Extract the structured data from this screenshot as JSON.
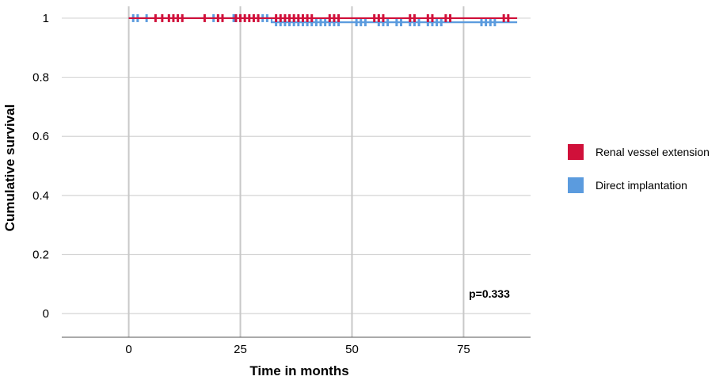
{
  "chart_data": {
    "type": "line",
    "xlabel": "Time in months",
    "ylabel": "Cumulative survival",
    "xlim": [
      -15,
      90
    ],
    "ylim": [
      -0.08,
      1.04
    ],
    "xticks": [
      0,
      25,
      50,
      75
    ],
    "yticks": [
      0,
      0.2,
      0.4,
      0.6,
      0.8,
      1
    ],
    "x_tick_labels": [
      "0",
      "25",
      "50",
      "75"
    ],
    "y_tick_labels": [
      "0",
      "0.2",
      "0.4",
      "0.6",
      "0.8",
      "1"
    ],
    "grid": true,
    "annotation": "p=0.333",
    "legend_position": "right",
    "series": [
      {
        "name": "Renal vessel extension",
        "color": "#d0103a",
        "line": [
          [
            0,
            1
          ],
          [
            87,
            1
          ]
        ],
        "censored_x": [
          6,
          7.5,
          9,
          10,
          11,
          12,
          17,
          20,
          21,
          24,
          25,
          26,
          27,
          28,
          29,
          33,
          34,
          35,
          36,
          37,
          38,
          39,
          40,
          41,
          45,
          46,
          47,
          55,
          56,
          57,
          63,
          64,
          67,
          68,
          71,
          72,
          84,
          85
        ],
        "censored_y": 1
      },
      {
        "name": "Direct implantation",
        "color": "#5b9bde",
        "line": [
          [
            0,
            1
          ],
          [
            32,
            1
          ],
          [
            32,
            0.986
          ],
          [
            87,
            0.986
          ]
        ],
        "censored_x": [
          1,
          2,
          4,
          19,
          23.5,
          24,
          25,
          30,
          31
        ],
        "censored_x_lower": [
          33,
          34,
          35,
          36,
          37,
          38,
          39,
          40,
          41,
          42,
          43,
          44,
          45,
          46,
          47,
          51,
          52,
          53,
          56,
          57,
          58,
          60,
          61,
          63,
          64,
          65,
          67,
          68,
          69,
          70,
          79,
          80,
          81,
          82
        ],
        "censored_y": 1,
        "censored_y_lower": 0.986
      }
    ]
  }
}
